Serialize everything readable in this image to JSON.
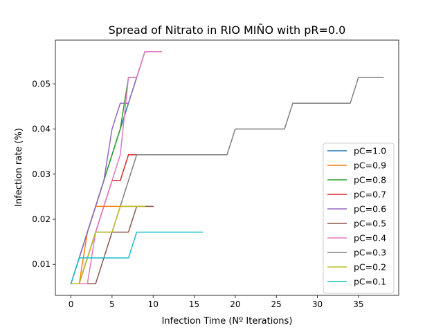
{
  "chart_data": {
    "type": "line",
    "title": "Spread of Nitrato in RIO MIÑO with pR=0.0",
    "xlabel": "Infection Time (Nº Iterations)",
    "ylabel": "Infection rate (%)",
    "xlim": [
      -1.9,
      39.9
    ],
    "ylim": [
      0.00314,
      0.0597
    ],
    "xticks": [
      0,
      5,
      10,
      15,
      20,
      25,
      30,
      35
    ],
    "yticks": [
      0.01,
      0.02,
      0.03,
      0.04,
      0.05
    ],
    "xtick_labels": [
      "0",
      "5",
      "10",
      "15",
      "20",
      "25",
      "30",
      "35"
    ],
    "ytick_labels": [
      "0.01",
      "0.02",
      "0.03",
      "0.04",
      "0.05"
    ],
    "grid": false,
    "legend": "center-right",
    "series": [
      {
        "name": "pC=1.0",
        "color": "#1f77b4",
        "x": [
          0,
          1,
          2,
          3,
          4,
          5,
          6,
          7,
          8
        ],
        "y": [
          0.00571,
          0.01143,
          0.01714,
          0.02286,
          0.02857,
          0.03429,
          0.04,
          0.04571,
          0.05143
        ]
      },
      {
        "name": "pC=0.9",
        "color": "#ff7f0e",
        "x": [
          0,
          1,
          2,
          3,
          4,
          5,
          6,
          7,
          8,
          9
        ],
        "y": [
          0.00571,
          0.00571,
          0.01714,
          0.02286,
          0.02286,
          0.02286,
          0.02286,
          0.02286,
          0.02286,
          0.02286
        ]
      },
      {
        "name": "pC=0.8",
        "color": "#2ca02c",
        "x": [
          0,
          1,
          2,
          3,
          4,
          5,
          6,
          7,
          8,
          9,
          10,
          11
        ],
        "y": [
          0.00571,
          0.01143,
          0.01714,
          0.02286,
          0.02857,
          0.03429,
          0.04,
          0.05143,
          0.05143,
          0.05714,
          0.05714,
          0.05714
        ]
      },
      {
        "name": "pC=0.7",
        "color": "#d62728",
        "x": [
          0,
          1,
          2,
          3,
          4,
          5,
          6,
          7,
          8
        ],
        "y": [
          0.00571,
          0.00571,
          0.01143,
          0.01714,
          0.02286,
          0.02857,
          0.02857,
          0.03429,
          0.03429
        ]
      },
      {
        "name": "pC=0.6",
        "color": "#9467bd",
        "x": [
          0,
          1,
          2,
          3,
          4,
          5,
          6,
          7,
          8,
          9,
          10,
          11
        ],
        "y": [
          0.00571,
          0.01143,
          0.01714,
          0.02286,
          0.02857,
          0.04,
          0.04571,
          0.04571,
          0.05143,
          0.05714,
          0.05714,
          0.05714
        ]
      },
      {
        "name": "pC=0.5",
        "color": "#8c564b",
        "x": [
          0,
          1,
          2,
          3,
          4,
          5,
          6,
          7,
          8,
          9,
          10
        ],
        "y": [
          0.00571,
          0.00571,
          0.00571,
          0.00571,
          0.01143,
          0.01714,
          0.01714,
          0.01714,
          0.02286,
          0.02286,
          0.02286
        ]
      },
      {
        "name": "pC=0.4",
        "color": "#e377c2",
        "x": [
          0,
          1,
          2,
          3,
          4,
          5,
          6,
          7,
          8,
          9,
          10,
          11
        ],
        "y": [
          0.00571,
          0.00571,
          0.00571,
          0.01714,
          0.02286,
          0.02857,
          0.03429,
          0.05143,
          0.05143,
          0.05714,
          0.05714,
          0.05714
        ]
      },
      {
        "name": "pC=0.3",
        "color": "#7f7f7f",
        "x": [
          0,
          1,
          2,
          3,
          4,
          5,
          6,
          7,
          8,
          9,
          10,
          11,
          12,
          13,
          14,
          15,
          16,
          17,
          18,
          19,
          20,
          21,
          22,
          23,
          24,
          25,
          26,
          27,
          28,
          29,
          30,
          31,
          32,
          33,
          34,
          35,
          36,
          37,
          38
        ],
        "y": [
          0.00571,
          0.00571,
          0.01143,
          0.01714,
          0.01714,
          0.01714,
          0.02286,
          0.02857,
          0.03429,
          0.03429,
          0.03429,
          0.03429,
          0.03429,
          0.03429,
          0.03429,
          0.03429,
          0.03429,
          0.03429,
          0.03429,
          0.03429,
          0.04,
          0.04,
          0.04,
          0.04,
          0.04,
          0.04,
          0.04,
          0.04571,
          0.04571,
          0.04571,
          0.04571,
          0.04571,
          0.04571,
          0.04571,
          0.04571,
          0.05143,
          0.05143,
          0.05143,
          0.05143
        ]
      },
      {
        "name": "pC=0.2",
        "color": "#bcbd22",
        "x": [
          0,
          1,
          2,
          3,
          4,
          5,
          6,
          7,
          8,
          9
        ],
        "y": [
          0.00571,
          0.00571,
          0.01143,
          0.01714,
          0.01714,
          0.01714,
          0.02286,
          0.02286,
          0.02286,
          0.02286
        ]
      },
      {
        "name": "pC=0.1",
        "color": "#17becf",
        "x": [
          0,
          1,
          2,
          3,
          4,
          5,
          6,
          7,
          8,
          9,
          10,
          11,
          12,
          13,
          14,
          15,
          16
        ],
        "y": [
          0.00571,
          0.01143,
          0.01143,
          0.01143,
          0.01143,
          0.01143,
          0.01143,
          0.01143,
          0.01714,
          0.01714,
          0.01714,
          0.01714,
          0.01714,
          0.01714,
          0.01714,
          0.01714,
          0.01714
        ]
      }
    ]
  }
}
